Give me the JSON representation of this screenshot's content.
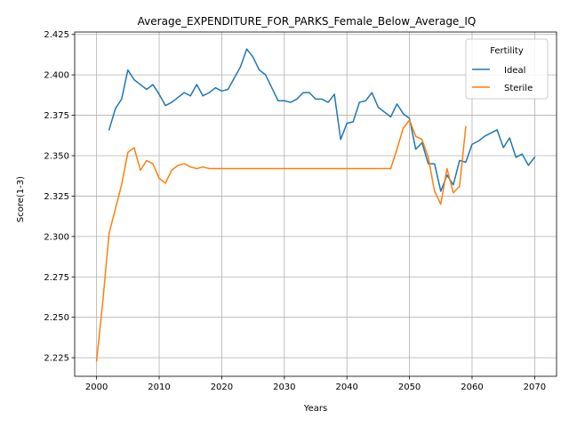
{
  "chart_data": {
    "type": "line",
    "title": "Average_EXPENDITURE_FOR_PARKS_Female_Below_Average_IQ",
    "xlabel": "Years",
    "ylabel": "Score(1-3)",
    "xlim": [
      1996.5,
      2073.5
    ],
    "ylim": [
      2.2135,
      2.4265
    ],
    "xticks": [
      2000,
      2010,
      2020,
      2030,
      2040,
      2050,
      2060,
      2070
    ],
    "yticks": [
      2.225,
      2.25,
      2.275,
      2.3,
      2.325,
      2.35,
      2.375,
      2.4,
      2.425
    ],
    "ytick_labels": [
      "2.225",
      "2.250",
      "2.275",
      "2.300",
      "2.325",
      "2.350",
      "2.375",
      "2.400",
      "2.425"
    ],
    "grid": true,
    "legend": {
      "title": "Fertility",
      "placement": "top-right"
    },
    "series": [
      {
        "name": "Ideal",
        "color": "#1f77b4",
        "x": [
          2002,
          2003,
          2004,
          2005,
          2006,
          2007,
          2008,
          2009,
          2010,
          2011,
          2012,
          2013,
          2014,
          2015,
          2016,
          2017,
          2018,
          2019,
          2020,
          2021,
          2022,
          2023,
          2024,
          2025,
          2026,
          2027,
          2028,
          2029,
          2030,
          2031,
          2032,
          2033,
          2034,
          2035,
          2036,
          2037,
          2038,
          2039,
          2040,
          2041,
          2042,
          2043,
          2044,
          2045,
          2046,
          2047,
          2048,
          2049,
          2050,
          2051,
          2052,
          2053,
          2054,
          2055,
          2056,
          2057,
          2058,
          2059,
          2060,
          2061,
          2062,
          2063,
          2064,
          2065,
          2066,
          2067,
          2068,
          2069,
          2070
        ],
        "y": [
          2.366,
          2.379,
          2.385,
          2.403,
          2.397,
          2.394,
          2.391,
          2.394,
          2.388,
          2.381,
          2.383,
          2.386,
          2.389,
          2.387,
          2.394,
          2.387,
          2.389,
          2.392,
          2.39,
          2.391,
          2.398,
          2.405,
          2.416,
          2.411,
          2.403,
          2.4,
          2.392,
          2.384,
          2.384,
          2.383,
          2.385,
          2.389,
          2.389,
          2.385,
          2.385,
          2.383,
          2.388,
          2.36,
          2.37,
          2.371,
          2.383,
          2.384,
          2.389,
          2.38,
          2.377,
          2.374,
          2.382,
          2.376,
          2.373,
          2.354,
          2.358,
          2.345,
          2.345,
          2.328,
          2.338,
          2.332,
          2.347,
          2.346,
          2.357,
          2.359,
          2.362,
          2.364,
          2.366,
          2.355,
          2.361,
          2.349,
          2.351,
          2.344,
          2.349
        ]
      },
      {
        "name": "Sterile",
        "color": "#ff7f0e",
        "x": [
          2000,
          2001,
          2002,
          2003,
          2004,
          2005,
          2006,
          2007,
          2008,
          2009,
          2010,
          2011,
          2012,
          2013,
          2014,
          2015,
          2016,
          2017,
          2018,
          2019,
          2020,
          2021,
          2022,
          2023,
          2024,
          2025,
          2026,
          2027,
          2028,
          2029,
          2030,
          2031,
          2032,
          2033,
          2034,
          2035,
          2036,
          2037,
          2038,
          2039,
          2040,
          2041,
          2042,
          2043,
          2044,
          2045,
          2046,
          2047,
          2048,
          2049,
          2050,
          2051,
          2052,
          2053,
          2054,
          2055,
          2056,
          2057,
          2058,
          2059
        ],
        "y": [
          2.223,
          2.26,
          2.302,
          2.317,
          2.332,
          2.352,
          2.355,
          2.341,
          2.347,
          2.345,
          2.336,
          2.333,
          2.341,
          2.344,
          2.345,
          2.343,
          2.342,
          2.343,
          2.342,
          2.342,
          2.342,
          2.342,
          2.342,
          2.342,
          2.342,
          2.342,
          2.342,
          2.342,
          2.342,
          2.342,
          2.342,
          2.342,
          2.342,
          2.342,
          2.342,
          2.342,
          2.342,
          2.342,
          2.342,
          2.342,
          2.342,
          2.342,
          2.342,
          2.342,
          2.342,
          2.342,
          2.342,
          2.342,
          2.354,
          2.367,
          2.372,
          2.362,
          2.36,
          2.349,
          2.328,
          2.32,
          2.342,
          2.327,
          2.331,
          2.368
        ]
      }
    ]
  }
}
